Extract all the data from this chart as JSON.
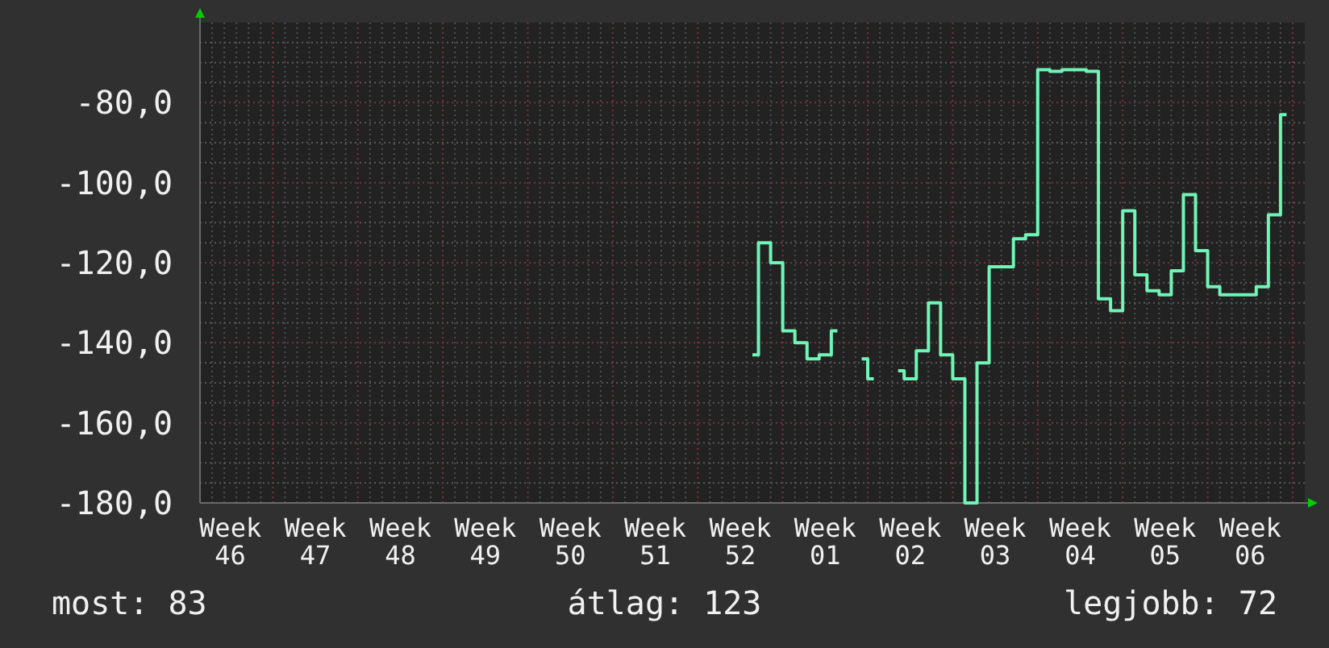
{
  "chart_data": {
    "type": "step",
    "color": "#6ff5b5",
    "line_style": "solid",
    "grid": true,
    "categories": [
      null,
      null,
      "Week 46",
      null,
      null,
      null,
      null,
      null,
      null,
      "Week 47",
      null,
      null,
      null,
      null,
      null,
      null,
      "Week 48",
      null,
      null,
      null,
      null,
      null,
      null,
      "Week 49",
      null,
      null,
      null,
      null,
      null,
      null,
      "Week 50",
      null,
      null,
      null,
      null,
      null,
      null,
      "Week 51",
      null,
      null,
      null,
      null,
      null,
      null,
      "Week 52",
      null,
      null,
      null,
      null,
      null,
      null,
      "Week 01",
      null,
      null,
      null,
      null,
      null,
      null,
      "Week 02",
      null,
      null,
      null,
      null,
      null,
      null,
      "Week 03",
      null,
      null,
      null,
      null,
      null,
      null,
      "Week 04",
      null,
      null,
      null,
      null,
      null,
      null,
      "Week 05",
      null,
      null,
      null,
      null,
      null,
      null,
      "Week 06",
      null,
      null,
      null,
      null
    ],
    "ylim": [
      -180,
      -60
    ],
    "yticks": [
      {
        "value": -180,
        "label": "-180,0"
      },
      {
        "value": -175,
        "label": null
      },
      {
        "value": -170,
        "label": null
      },
      {
        "value": -165,
        "label": null
      },
      {
        "value": -160,
        "label": "-160,0"
      },
      {
        "value": -155,
        "label": null
      },
      {
        "value": -150,
        "label": null
      },
      {
        "value": -145,
        "label": null
      },
      {
        "value": -140,
        "label": "-140,0"
      },
      {
        "value": -135,
        "label": null
      },
      {
        "value": -130,
        "label": null
      },
      {
        "value": -125,
        "label": null
      },
      {
        "value": -120,
        "label": "-120,0"
      },
      {
        "value": -115,
        "label": null
      },
      {
        "value": -110,
        "label": null
      },
      {
        "value": -105,
        "label": null
      },
      {
        "value": -100,
        "label": "-100,0"
      },
      {
        "value": -95,
        "label": null
      },
      {
        "value": -90,
        "label": null
      },
      {
        "value": -85,
        "label": null
      },
      {
        "value": -80,
        "label": "-80,0"
      },
      {
        "value": -75,
        "label": null
      },
      {
        "value": -70,
        "label": null
      },
      {
        "value": -65,
        "label": null
      }
    ],
    "values": [
      null,
      null,
      null,
      null,
      null,
      null,
      null,
      null,
      null,
      null,
      null,
      null,
      null,
      null,
      null,
      null,
      null,
      null,
      null,
      null,
      null,
      null,
      null,
      null,
      null,
      null,
      null,
      null,
      null,
      null,
      null,
      null,
      null,
      null,
      null,
      null,
      null,
      null,
      null,
      null,
      null,
      null,
      null,
      null,
      null,
      -143,
      -115,
      -120,
      -137,
      -140,
      -144,
      -143,
      -137,
      null,
      -144,
      -149,
      null,
      -147,
      -149,
      -142,
      -130,
      -143,
      -149,
      -180,
      -145,
      -121,
      -121,
      -114,
      -113,
      -71.8,
      -72.2,
      -71.8,
      -71.8,
      -72.2,
      -129,
      -132,
      -107,
      -123,
      -127,
      -128,
      -122,
      -103,
      -117,
      -126,
      -128,
      -128,
      -128,
      -126,
      -108,
      -83,
      null
    ],
    "annotations": [
      "most: 83",
      "átlag: 123",
      "legjobb: 72"
    ]
  }
}
